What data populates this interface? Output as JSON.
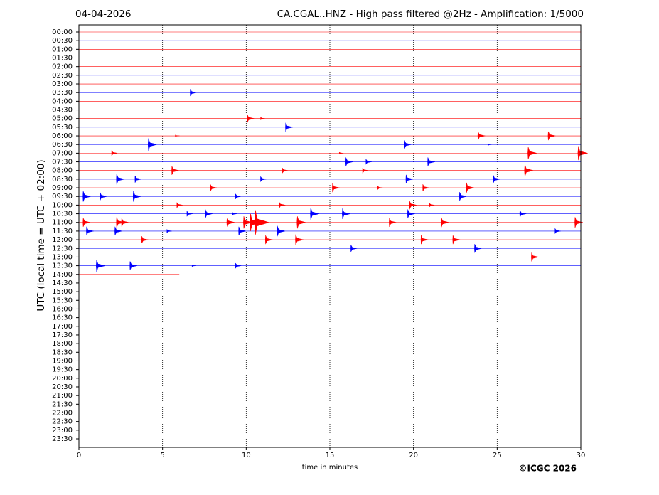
{
  "chart_data": {
    "type": "helicorder",
    "date": "04-04-2026",
    "title": "CA.CGAL..HNZ - High pass filtered @2Hz - Amplification: 1/5000",
    "ylabel": "UTC (local time = UTC + 02:00)",
    "xlabel": "time in minutes",
    "copyright": "©ICGC 2026",
    "xlim": [
      0,
      30
    ],
    "xticks": [
      0,
      5,
      10,
      15,
      20,
      25,
      30
    ],
    "grid": true,
    "trace_colors": [
      "#ff0000",
      "#0000ff"
    ],
    "categories": [
      "00:00",
      "00:30",
      "01:00",
      "01:30",
      "02:00",
      "02:30",
      "03:00",
      "03:30",
      "04:00",
      "04:30",
      "05:00",
      "05:30",
      "06:00",
      "06:30",
      "07:00",
      "07:30",
      "08:00",
      "08:30",
      "09:00",
      "09:30",
      "10:00",
      "10:30",
      "11:00",
      "11:30",
      "12:00",
      "12:30",
      "13:00",
      "13:30",
      "14:00",
      "14:30",
      "15:00",
      "15:30",
      "16:00",
      "16:30",
      "17:00",
      "17:30",
      "18:00",
      "18:30",
      "19:00",
      "19:30",
      "20:00",
      "20:30",
      "21:00",
      "21:30",
      "22:00",
      "22:30",
      "23:00",
      "23:30"
    ],
    "data_end": {
      "row": 28,
      "minute": 6
    },
    "events": [
      {
        "row": 7,
        "x": 6.7,
        "amp": 0.4
      },
      {
        "row": 10,
        "x": 10.1,
        "amp": 0.5
      },
      {
        "row": 10,
        "x": 10.9,
        "amp": 0.15
      },
      {
        "row": 11,
        "x": 12.4,
        "amp": 0.5
      },
      {
        "row": 12,
        "x": 5.8,
        "amp": 0.1
      },
      {
        "row": 12,
        "x": 23.9,
        "amp": 0.5
      },
      {
        "row": 12,
        "x": 28.1,
        "amp": 0.5
      },
      {
        "row": 13,
        "x": 4.2,
        "amp": 0.7
      },
      {
        "row": 13,
        "x": 19.5,
        "amp": 0.5
      },
      {
        "row": 13,
        "x": 24.5,
        "amp": 0.1
      },
      {
        "row": 14,
        "x": 2.0,
        "amp": 0.3
      },
      {
        "row": 14,
        "x": 15.6,
        "amp": 0.1
      },
      {
        "row": 14,
        "x": 26.9,
        "amp": 0.7
      },
      {
        "row": 14,
        "x": 29.9,
        "amp": 0.8
      },
      {
        "row": 15,
        "x": 16.0,
        "amp": 0.5
      },
      {
        "row": 15,
        "x": 17.2,
        "amp": 0.3
      },
      {
        "row": 15,
        "x": 20.9,
        "amp": 0.5
      },
      {
        "row": 16,
        "x": 5.6,
        "amp": 0.5
      },
      {
        "row": 16,
        "x": 12.2,
        "amp": 0.3
      },
      {
        "row": 16,
        "x": 17.0,
        "amp": 0.3
      },
      {
        "row": 16,
        "x": 26.7,
        "amp": 0.7
      },
      {
        "row": 17,
        "x": 2.3,
        "amp": 0.6
      },
      {
        "row": 17,
        "x": 3.4,
        "amp": 0.4
      },
      {
        "row": 17,
        "x": 10.9,
        "amp": 0.3
      },
      {
        "row": 17,
        "x": 19.6,
        "amp": 0.5
      },
      {
        "row": 17,
        "x": 24.8,
        "amp": 0.5
      },
      {
        "row": 18,
        "x": 7.9,
        "amp": 0.4
      },
      {
        "row": 18,
        "x": 15.2,
        "amp": 0.5
      },
      {
        "row": 18,
        "x": 17.9,
        "amp": 0.2
      },
      {
        "row": 18,
        "x": 20.6,
        "amp": 0.4
      },
      {
        "row": 18,
        "x": 23.2,
        "amp": 0.6
      },
      {
        "row": 19,
        "x": 0.3,
        "amp": 0.6
      },
      {
        "row": 19,
        "x": 1.3,
        "amp": 0.5
      },
      {
        "row": 19,
        "x": 3.3,
        "amp": 0.6
      },
      {
        "row": 19,
        "x": 9.4,
        "amp": 0.3
      },
      {
        "row": 19,
        "x": 22.8,
        "amp": 0.5
      },
      {
        "row": 20,
        "x": 5.9,
        "amp": 0.3
      },
      {
        "row": 20,
        "x": 12.0,
        "amp": 0.4
      },
      {
        "row": 20,
        "x": 19.8,
        "amp": 0.5
      },
      {
        "row": 20,
        "x": 21.0,
        "amp": 0.2
      },
      {
        "row": 21,
        "x": 6.5,
        "amp": 0.3
      },
      {
        "row": 21,
        "x": 7.6,
        "amp": 0.5
      },
      {
        "row": 21,
        "x": 9.2,
        "amp": 0.2
      },
      {
        "row": 21,
        "x": 13.9,
        "amp": 0.7
      },
      {
        "row": 21,
        "x": 15.8,
        "amp": 0.6
      },
      {
        "row": 21,
        "x": 19.7,
        "amp": 0.5
      },
      {
        "row": 21,
        "x": 26.4,
        "amp": 0.4
      },
      {
        "row": 22,
        "x": 0.3,
        "amp": 0.5
      },
      {
        "row": 22,
        "x": 2.3,
        "amp": 0.6
      },
      {
        "row": 22,
        "x": 2.6,
        "amp": 0.5
      },
      {
        "row": 22,
        "x": 8.9,
        "amp": 0.6
      },
      {
        "row": 22,
        "x": 9.9,
        "amp": 0.7
      },
      {
        "row": 22,
        "x": 10.3,
        "amp": 1.0
      },
      {
        "row": 22,
        "x": 10.6,
        "amp": 1.4
      },
      {
        "row": 22,
        "x": 13.1,
        "amp": 0.7
      },
      {
        "row": 22,
        "x": 18.6,
        "amp": 0.5
      },
      {
        "row": 22,
        "x": 21.7,
        "amp": 0.6
      },
      {
        "row": 22,
        "x": 29.7,
        "amp": 0.6
      },
      {
        "row": 23,
        "x": 0.5,
        "amp": 0.5
      },
      {
        "row": 23,
        "x": 2.2,
        "amp": 0.5
      },
      {
        "row": 23,
        "x": 5.3,
        "amp": 0.2
      },
      {
        "row": 23,
        "x": 9.6,
        "amp": 0.5
      },
      {
        "row": 23,
        "x": 11.9,
        "amp": 0.6
      },
      {
        "row": 23,
        "x": 28.5,
        "amp": 0.3
      },
      {
        "row": 24,
        "x": 3.8,
        "amp": 0.4
      },
      {
        "row": 24,
        "x": 11.2,
        "amp": 0.5
      },
      {
        "row": 24,
        "x": 13.0,
        "amp": 0.6
      },
      {
        "row": 24,
        "x": 20.5,
        "amp": 0.5
      },
      {
        "row": 24,
        "x": 22.4,
        "amp": 0.5
      },
      {
        "row": 25,
        "x": 16.3,
        "amp": 0.4
      },
      {
        "row": 25,
        "x": 23.7,
        "amp": 0.5
      },
      {
        "row": 26,
        "x": 27.1,
        "amp": 0.5
      },
      {
        "row": 27,
        "x": 1.1,
        "amp": 0.7
      },
      {
        "row": 27,
        "x": 3.1,
        "amp": 0.5
      },
      {
        "row": 27,
        "x": 6.8,
        "amp": 0.1
      },
      {
        "row": 27,
        "x": 9.4,
        "amp": 0.3
      }
    ]
  }
}
